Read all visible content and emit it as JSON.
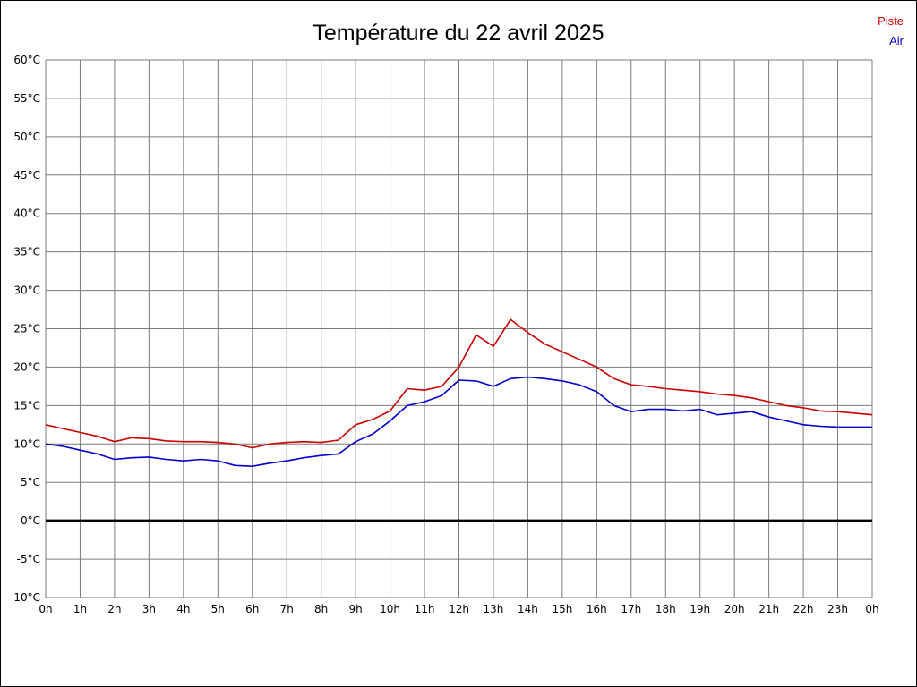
{
  "title": "Température du 22 avril 2025",
  "chart_data": {
    "type": "line",
    "title": "Température du 22 avril 2025",
    "xlabel": "",
    "ylabel": "",
    "x_range_hours": [
      0,
      24
    ],
    "ylim": [
      -10,
      60
    ],
    "grid": true,
    "zero_line": {
      "value": 0,
      "color": "#000000",
      "width": 3
    },
    "grid_color": "#7a7a7a",
    "x_tick_labels": [
      "0h",
      "1h",
      "2h",
      "3h",
      "4h",
      "5h",
      "6h",
      "7h",
      "8h",
      "9h",
      "10h",
      "11h",
      "12h",
      "13h",
      "14h",
      "15h",
      "16h",
      "17h",
      "18h",
      "19h",
      "20h",
      "21h",
      "22h",
      "23h",
      "0h"
    ],
    "y_tick_labels": [
      "60°C",
      "55°C",
      "50°C",
      "45°C",
      "40°C",
      "35°C",
      "30°C",
      "25°C",
      "20°C",
      "15°C",
      "10°C",
      "5°C",
      "0°C",
      "-5°C",
      "-10°C"
    ],
    "y_tick_values": [
      60,
      55,
      50,
      45,
      40,
      35,
      30,
      25,
      20,
      15,
      10,
      5,
      0,
      -5,
      -10
    ],
    "legend_position": "top-right",
    "series": [
      {
        "name": "Piste",
        "color": "#cc0000",
        "x": [
          0,
          0.5,
          1,
          1.5,
          2,
          2.5,
          3,
          3.5,
          4,
          4.5,
          5,
          5.5,
          6,
          6.5,
          7,
          7.5,
          8,
          8.5,
          9,
          9.5,
          10,
          10.5,
          11,
          11.5,
          12,
          12.5,
          13,
          13.5,
          14,
          14.5,
          15,
          15.5,
          16,
          16.5,
          17,
          17.5,
          18,
          18.5,
          19,
          19.5,
          20,
          20.5,
          21,
          21.5,
          22,
          22.5,
          23,
          23.5,
          24
        ],
        "y": [
          12.5,
          12.0,
          11.5,
          11.0,
          10.3,
          10.8,
          10.7,
          10.4,
          10.3,
          10.3,
          10.2,
          10.0,
          9.5,
          10.0,
          10.2,
          10.3,
          10.2,
          10.5,
          12.5,
          13.2,
          14.3,
          17.2,
          17.0,
          17.5,
          20.0,
          24.2,
          22.7,
          26.2,
          24.5,
          23.0,
          22.0,
          21.0,
          20.0,
          18.5,
          17.7,
          17.5,
          17.2,
          17.0,
          16.8,
          16.5,
          16.3,
          16.0,
          15.5,
          15.0,
          14.7,
          14.3,
          14.2,
          14.0,
          13.8
        ]
      },
      {
        "name": "Air",
        "color": "#0000cc",
        "x": [
          0,
          0.5,
          1,
          1.5,
          2,
          2.5,
          3,
          3.5,
          4,
          4.5,
          5,
          5.5,
          6,
          6.5,
          7,
          7.5,
          8,
          8.5,
          9,
          9.5,
          10,
          10.5,
          11,
          11.5,
          12,
          12.5,
          13,
          13.5,
          14,
          14.5,
          15,
          15.5,
          16,
          16.5,
          17,
          17.5,
          18,
          18.5,
          19,
          19.5,
          20,
          20.5,
          21,
          21.5,
          22,
          22.5,
          23,
          23.5,
          24
        ],
        "y": [
          10.0,
          9.7,
          9.2,
          8.7,
          8.0,
          8.2,
          8.3,
          8.0,
          7.8,
          8.0,
          7.8,
          7.2,
          7.1,
          7.5,
          7.8,
          8.2,
          8.5,
          8.7,
          10.3,
          11.3,
          13.0,
          15.0,
          15.5,
          16.3,
          18.3,
          18.2,
          17.5,
          18.5,
          18.7,
          18.5,
          18.2,
          17.7,
          16.8,
          15.0,
          14.2,
          14.5,
          14.5,
          14.3,
          14.5,
          13.8,
          14.0,
          14.2,
          13.5,
          13.0,
          12.5,
          12.3,
          12.2,
          12.2,
          12.2
        ]
      }
    ]
  }
}
